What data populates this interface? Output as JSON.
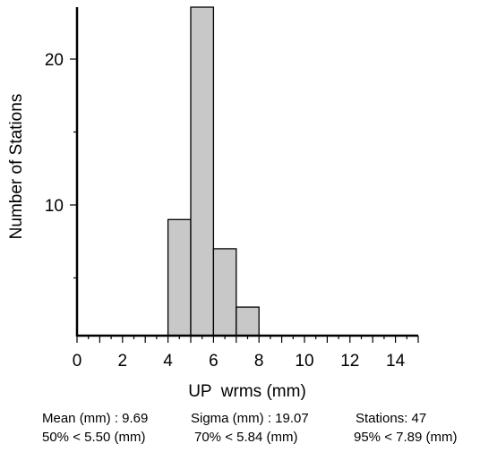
{
  "chart_data": {
    "type": "bar",
    "subtype": "histogram",
    "bin_edges": [
      4,
      5,
      6,
      7,
      8
    ],
    "values": [
      9,
      24,
      7,
      3
    ],
    "xlabel": "UP  wrms (mm)",
    "ylabel": "Number of Stations",
    "xlim": [
      0,
      15
    ],
    "ylim": [
      1,
      24
    ],
    "x_ticks": [
      0,
      2,
      4,
      6,
      8,
      10,
      12,
      14
    ],
    "y_ticks": [
      10,
      20
    ],
    "bar_color": "#c8c8c8",
    "grid": false
  },
  "stats": {
    "mean": "Mean (mm) : 9.69",
    "sigma": "Sigma (mm) : 19.07",
    "stations": "Stations: 47",
    "p50": "50% < 5.50 (mm)",
    "p70": "70% < 5.84 (mm)",
    "p95": "95% < 7.89 (mm)"
  }
}
